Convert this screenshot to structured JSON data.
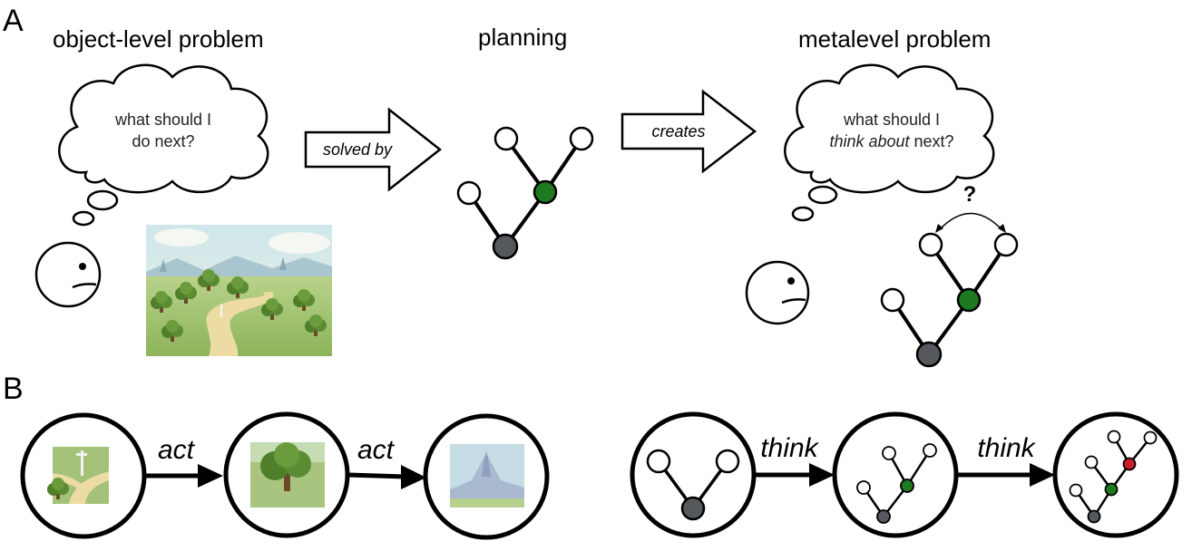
{
  "panel_a": {
    "letter": "A",
    "object_title": "object-level problem",
    "planning_title": "planning",
    "meta_title": "metalevel problem",
    "object_bubble": {
      "line1": "what should I",
      "line2": "do next?"
    },
    "meta_bubble": {
      "line1": "what should I",
      "line2_italic": "think about",
      "line2_rest": " next?"
    },
    "arrow1_label": "solved by",
    "arrow2_label": "creates",
    "question_mark": "?"
  },
  "panel_b": {
    "letter": "B",
    "act_label_1": "act",
    "act_label_2": "act",
    "think_label_1": "think",
    "think_label_2": "think"
  },
  "colors": {
    "green_node": "#1e7a1e",
    "gray_node": "#55585d",
    "red_node": "#c81e2a",
    "stroke": "#000000"
  },
  "icons": [
    "thought-bubble-icon",
    "person-face-icon",
    "landscape-illustration",
    "tree-graph-icon"
  ]
}
